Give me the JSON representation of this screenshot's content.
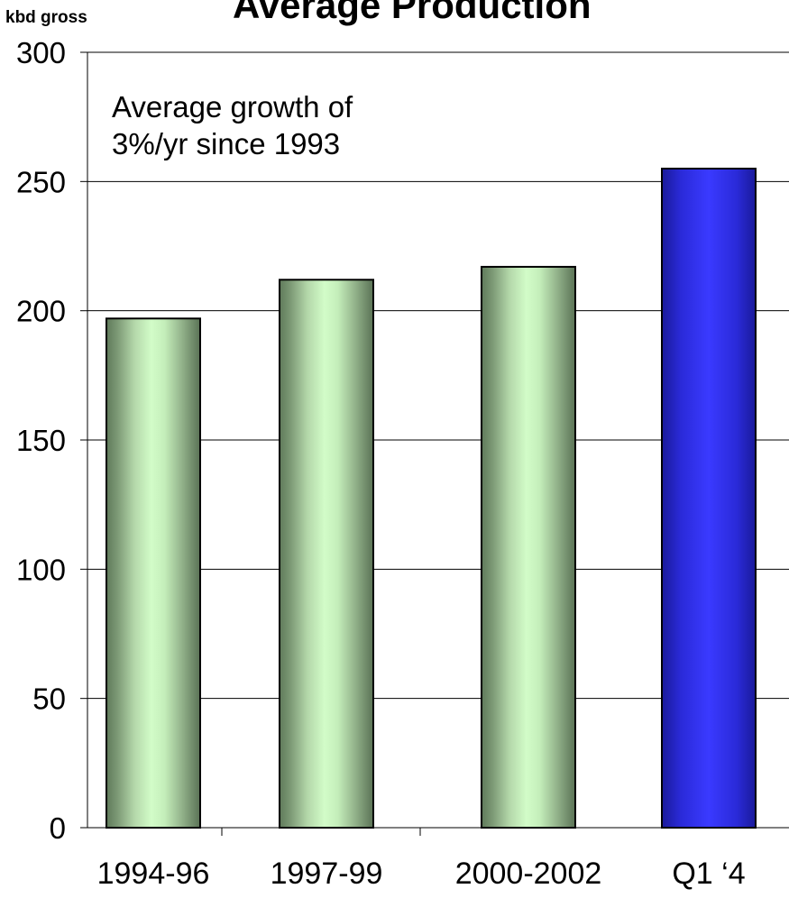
{
  "chart_data": {
    "type": "bar",
    "title": "Average Production",
    "ylabel": "kbd gross",
    "xlabel": "",
    "categories": [
      "1994-96",
      "1997-99",
      "2000-2002",
      "Q1 ‘4"
    ],
    "values": [
      197,
      212,
      217,
      255
    ],
    "ylim": [
      0,
      300
    ],
    "yticks": [
      0,
      50,
      100,
      150,
      200,
      250,
      300
    ],
    "grid": true,
    "annotation": [
      "Average growth of",
      "3%/yr since 1993"
    ],
    "colors": {
      "standard": "#c8f0c0",
      "highlight": "#3333ff"
    },
    "highlight_index": 3
  }
}
